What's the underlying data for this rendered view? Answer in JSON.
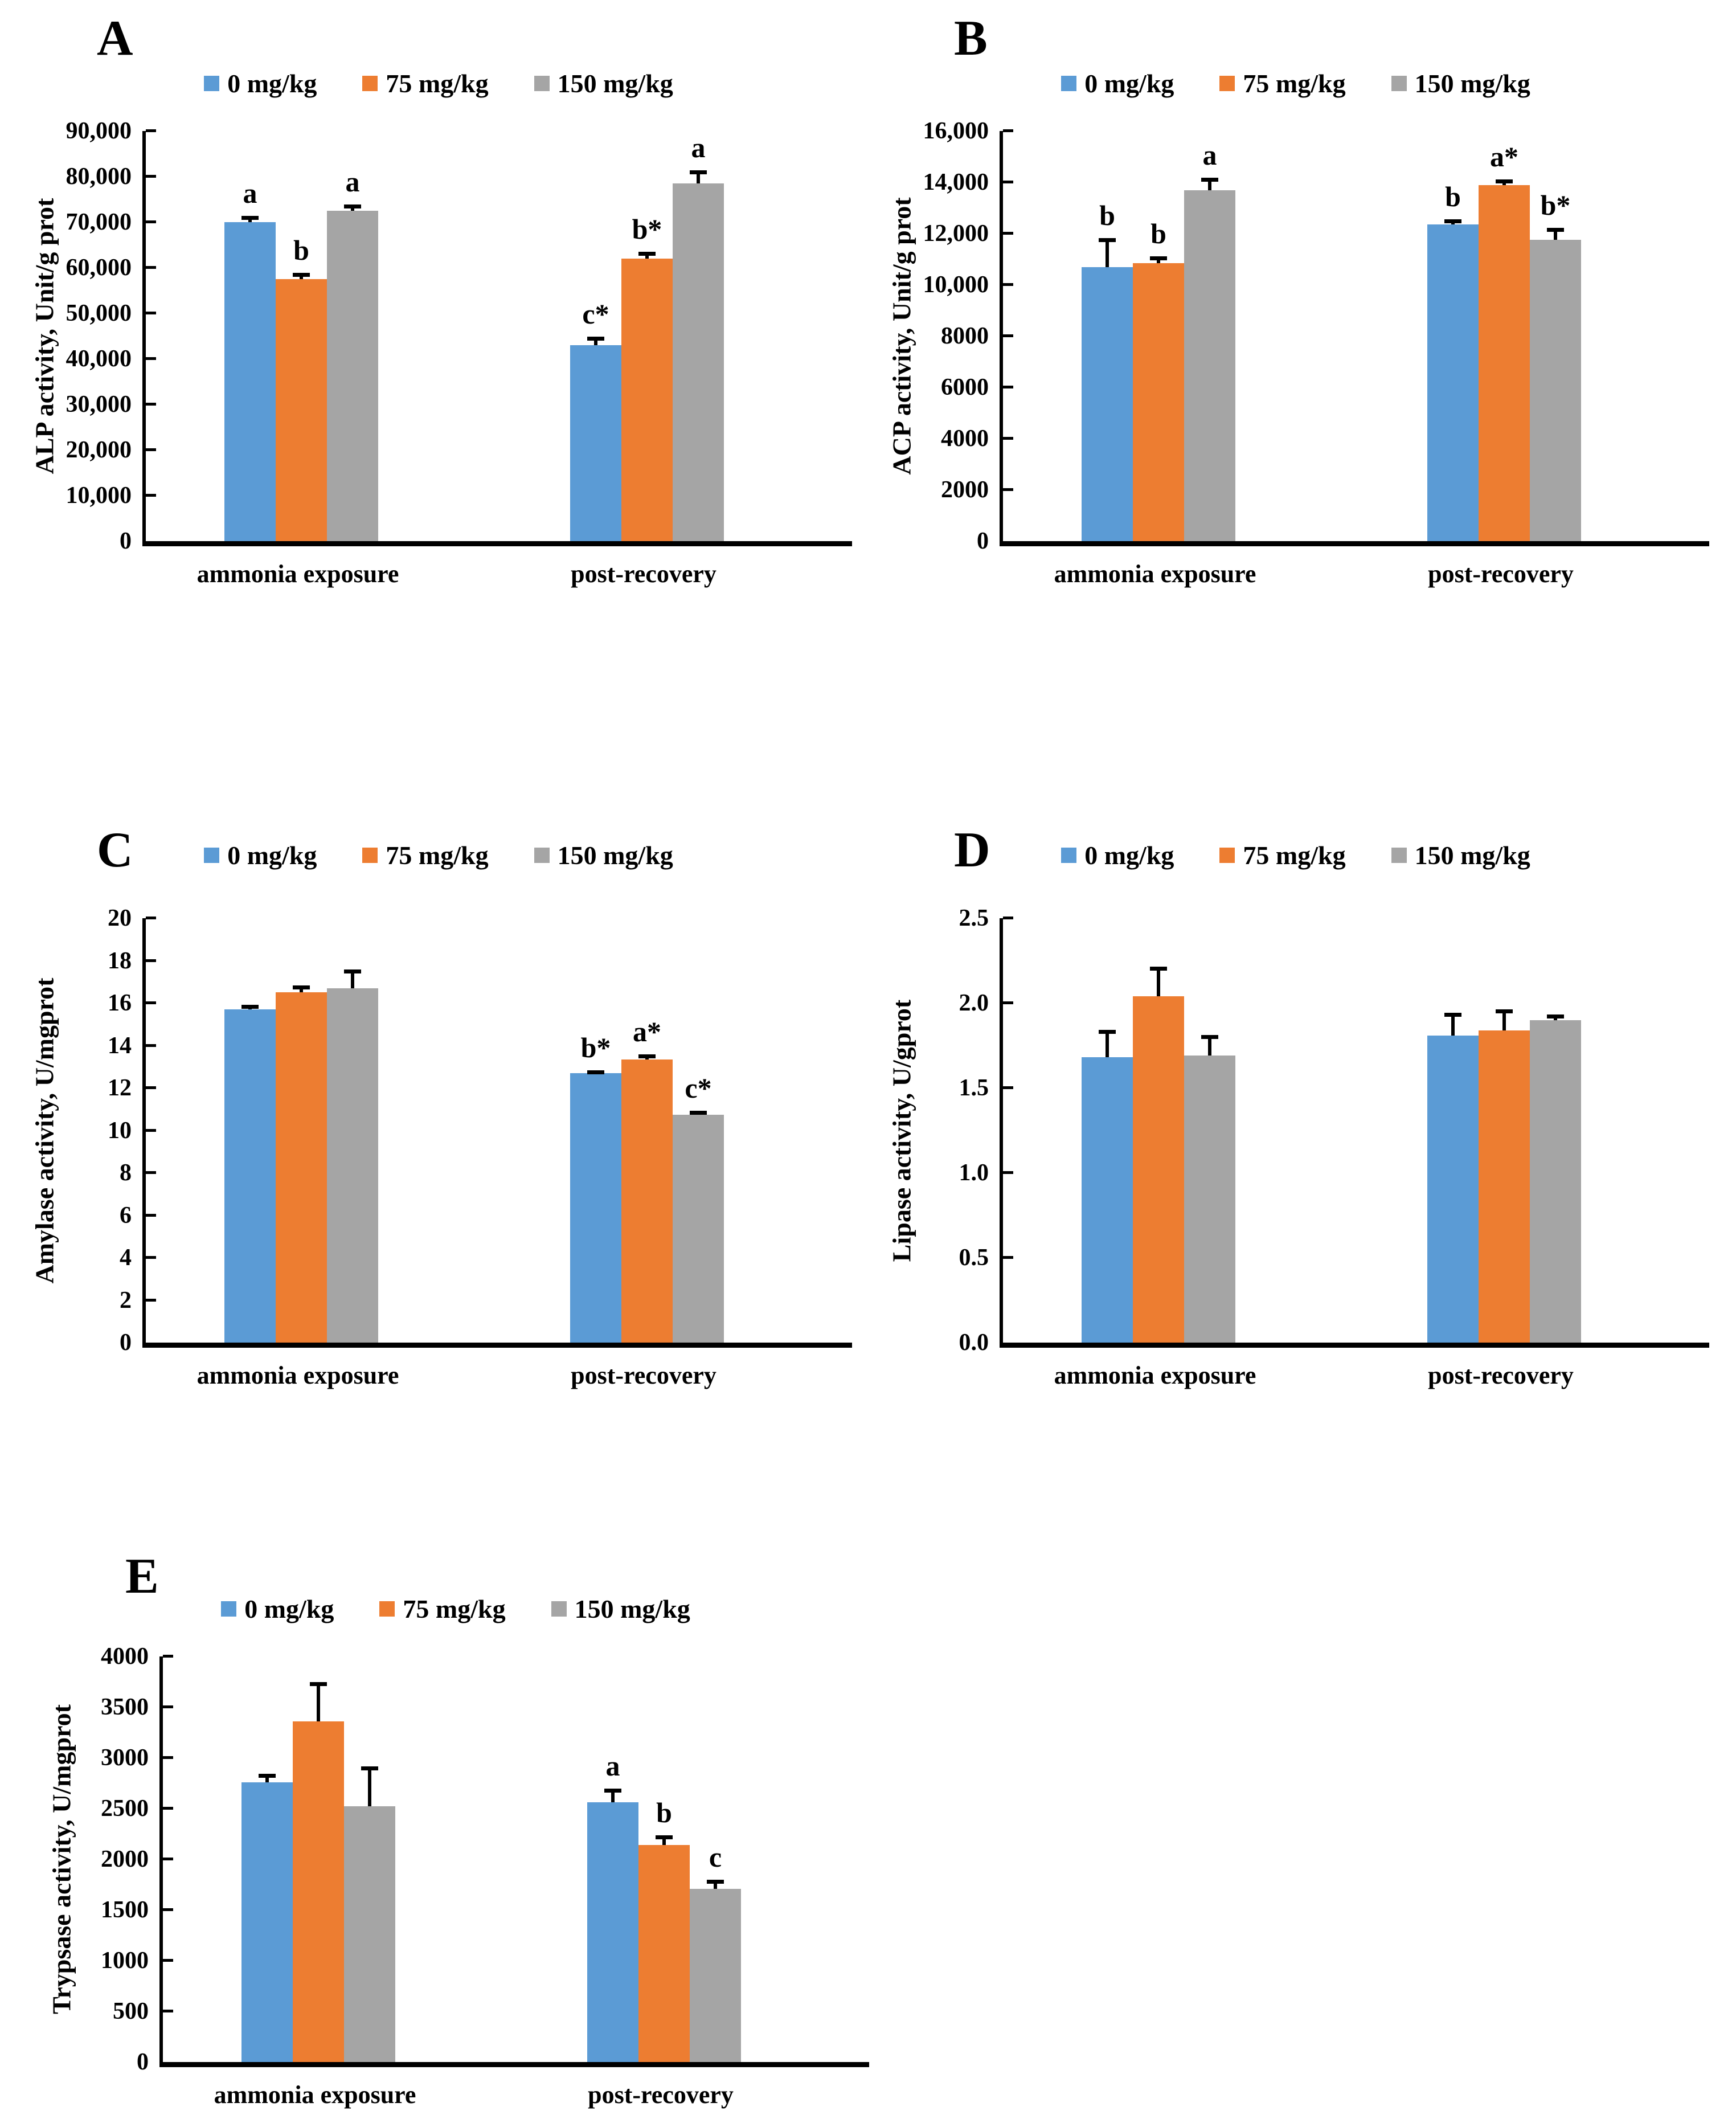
{
  "figure": {
    "background": "#ffffff",
    "axis_color": "#000000",
    "text_color": "#000000",
    "series_colors": [
      "#5B9BD5",
      "#ED7D31",
      "#A5A5A5"
    ],
    "legend_labels": [
      "0 mg/kg",
      "75 mg/kg",
      "150 mg/kg"
    ]
  },
  "chart_data": [
    {
      "panel": "A",
      "type": "bar",
      "title": "",
      "ylabel": "ALP activity, Unit/g prot",
      "xlabel": "",
      "categories": [
        "ammonia exposure",
        "post-recovery"
      ],
      "ylim": [
        0,
        90000
      ],
      "grid": false,
      "legend_position": "top",
      "ytick_values": [
        90000,
        80000,
        70000,
        60000,
        50000,
        40000,
        30000,
        20000,
        10000,
        0
      ],
      "ytick_labels": [
        "90,000",
        "80,000",
        "70,000",
        "60,000",
        "50,000",
        "40,000",
        "30,000",
        "20,000",
        "10,000",
        "0"
      ],
      "series": [
        {
          "name": "0 mg/kg",
          "values": [
            70000,
            43000
          ],
          "errors": [
            1200,
            1800
          ],
          "annotations": [
            "a",
            "c*"
          ]
        },
        {
          "name": "75 mg/kg",
          "values": [
            57500,
            62000
          ],
          "errors": [
            1200,
            1400
          ],
          "annotations": [
            "b",
            "b*"
          ]
        },
        {
          "name": "150 mg/kg",
          "values": [
            72500,
            78500
          ],
          "errors": [
            1200,
            2800
          ],
          "annotations": [
            "a",
            "a"
          ]
        }
      ]
    },
    {
      "panel": "B",
      "type": "bar",
      "title": "",
      "ylabel": "ACP activity, Unit/g prot",
      "xlabel": "",
      "categories": [
        "ammonia exposure",
        "post-recovery"
      ],
      "ylim": [
        0,
        16000
      ],
      "grid": false,
      "legend_position": "top",
      "ytick_values": [
        16000,
        14000,
        12000,
        10000,
        8000,
        6000,
        4000,
        2000,
        0
      ],
      "ytick_labels": [
        "16,000",
        "14,000",
        "12,000",
        "10,000",
        "8000",
        "6000",
        "4000",
        "2000",
        "0"
      ],
      "series": [
        {
          "name": "0 mg/kg",
          "values": [
            10700,
            12350
          ],
          "errors": [
            1100,
            180
          ],
          "annotations": [
            "b",
            "b"
          ]
        },
        {
          "name": "75 mg/kg",
          "values": [
            10850,
            13900
          ],
          "errors": [
            250,
            200
          ],
          "annotations": [
            "b",
            "a*"
          ]
        },
        {
          "name": "150 mg/kg",
          "values": [
            13700,
            11750
          ],
          "errors": [
            450,
            450
          ],
          "annotations": [
            "a",
            "b*"
          ]
        }
      ]
    },
    {
      "panel": "C",
      "type": "bar",
      "title": "",
      "ylabel": "Amylase activity, U/mgprot",
      "xlabel": "",
      "categories": [
        "ammonia exposure",
        "post-recovery"
      ],
      "ylim": [
        0,
        20
      ],
      "grid": false,
      "legend_position": "top",
      "ytick_values": [
        20,
        18,
        16,
        14,
        12,
        10,
        8,
        6,
        4,
        2,
        0
      ],
      "ytick_labels": [
        "20",
        "18",
        "16",
        "14",
        "12",
        "10",
        "8",
        "6",
        "4",
        "2",
        "0"
      ],
      "series": [
        {
          "name": "0 mg/kg",
          "values": [
            15.7,
            12.7
          ],
          "errors": [
            0.2,
            0.12
          ],
          "annotations": [
            null,
            "b*"
          ]
        },
        {
          "name": "75 mg/kg",
          "values": [
            16.5,
            13.35
          ],
          "errors": [
            0.3,
            0.2
          ],
          "annotations": [
            null,
            "a*"
          ]
        },
        {
          "name": "150 mg/kg",
          "values": [
            16.7,
            10.75
          ],
          "errors": [
            0.85,
            0.15
          ],
          "annotations": [
            null,
            "c*"
          ]
        }
      ]
    },
    {
      "panel": "D",
      "type": "bar",
      "title": "",
      "ylabel": "Lipase activity, U/gprot",
      "xlabel": "",
      "categories": [
        "ammonia exposure",
        "post-recovery"
      ],
      "ylim": [
        0,
        2.5
      ],
      "grid": false,
      "legend_position": "top",
      "ytick_values": [
        2.5,
        2.0,
        1.5,
        1.0,
        0.5,
        0
      ],
      "ytick_labels": [
        "2.5",
        "2.0",
        "1.5",
        "1.0",
        "0.5",
        "0.0"
      ],
      "series": [
        {
          "name": "0 mg/kg",
          "values": [
            1.68,
            1.81
          ],
          "errors": [
            0.16,
            0.13
          ],
          "annotations": [
            null,
            null
          ]
        },
        {
          "name": "75 mg/kg",
          "values": [
            2.04,
            1.84
          ],
          "errors": [
            0.17,
            0.12
          ],
          "annotations": [
            null,
            null
          ]
        },
        {
          "name": "150 mg/kg",
          "values": [
            1.69,
            1.9
          ],
          "errors": [
            0.12,
            0.03
          ],
          "annotations": [
            null,
            null
          ]
        }
      ]
    },
    {
      "panel": "E",
      "type": "bar",
      "title": "",
      "ylabel": "Trypsase activity, U/mgprot",
      "xlabel": "",
      "categories": [
        "ammonia exposure",
        "post-recovery"
      ],
      "ylim": [
        0,
        4000
      ],
      "grid": false,
      "legend_position": "top",
      "ytick_values": [
        4000,
        3500,
        3000,
        2500,
        2000,
        1500,
        1000,
        500,
        0
      ],
      "ytick_labels": [
        "4000",
        "3500",
        "3000",
        "2500",
        "2000",
        "1500",
        "1000",
        "500",
        "0"
      ],
      "series": [
        {
          "name": "0 mg/kg",
          "values": [
            2760,
            2560
          ],
          "errors": [
            80,
            130
          ],
          "annotations": [
            null,
            "a"
          ]
        },
        {
          "name": "75 mg/kg",
          "values": [
            3360,
            2140
          ],
          "errors": [
            380,
            90
          ],
          "annotations": [
            null,
            "b"
          ]
        },
        {
          "name": "150 mg/kg",
          "values": [
            2520,
            1710
          ],
          "errors": [
            390,
            80
          ],
          "annotations": [
            null,
            "c"
          ]
        }
      ]
    }
  ]
}
